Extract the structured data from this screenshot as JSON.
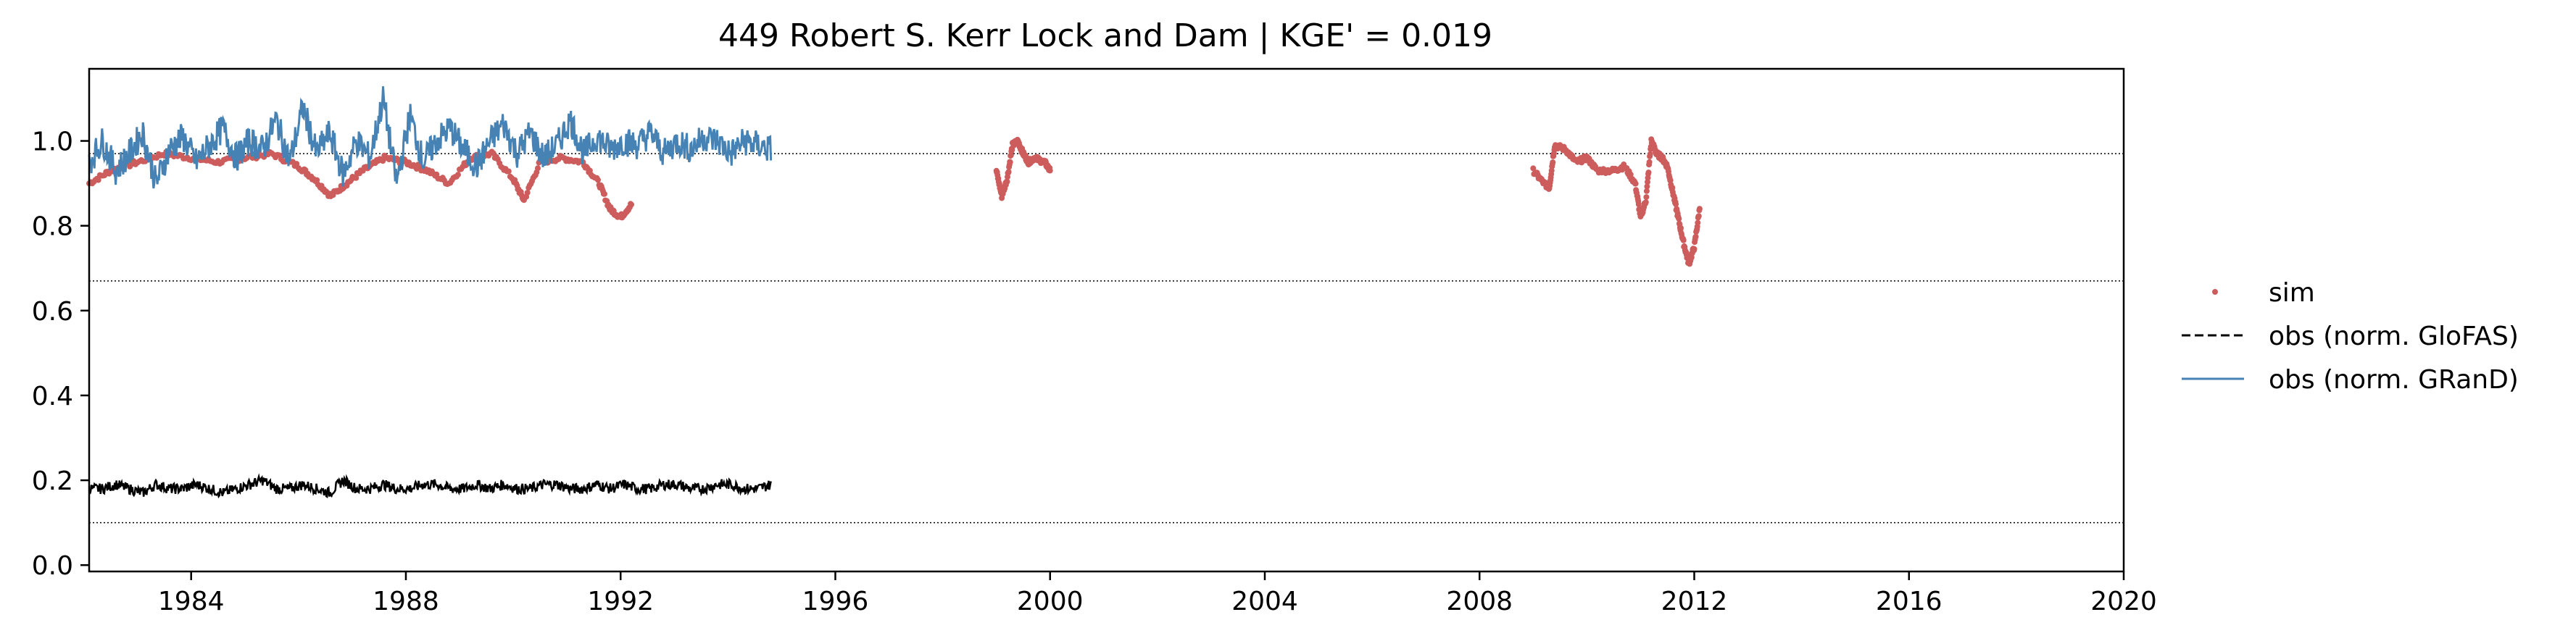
{
  "chart_data": {
    "type": "line",
    "title": "449  Robert S. Kerr Lock and Dam | KGE' = 0.019",
    "xlabel": "",
    "ylabel": "",
    "xlim": [
      1982.1,
      2020.0
    ],
    "ylim": [
      -0.015,
      1.17
    ],
    "x_ticks": [
      1984,
      1988,
      1992,
      1996,
      2000,
      2004,
      2008,
      2012,
      2016,
      2020
    ],
    "x_tick_labels": [
      "1984",
      "1988",
      "1992",
      "1996",
      "2000",
      "2004",
      "2008",
      "2012",
      "2016",
      "2020"
    ],
    "y_ticks": [
      0.0,
      0.2,
      0.4,
      0.6,
      0.8,
      1.0
    ],
    "y_tick_labels": [
      "0.0",
      "0.2",
      "0.4",
      "0.6",
      "0.8",
      "1.0"
    ],
    "reference_lines": [
      0.97,
      0.67,
      0.1
    ],
    "legend_position": "right",
    "colors": {
      "sim": "#cd5c5c",
      "obs_glofas": "#000000",
      "obs_grand": "#4682b4"
    },
    "series": [
      {
        "name": "sim",
        "style": "scatter",
        "segments": [
          {
            "x": [
              1982.1,
              1982.5,
              1983.0,
              1983.5,
              1984.0,
              1984.5,
              1985.0,
              1985.5,
              1986.0,
              1986.3,
              1986.6,
              1986.9,
              1987.2,
              1987.6,
              1988.0,
              1988.4,
              1988.8,
              1989.2,
              1989.6,
              1990.0,
              1990.2,
              1990.5,
              1990.9,
              1991.3,
              1991.6,
              1991.8,
              1992.0,
              1992.2
            ],
            "y": [
              0.9,
              0.93,
              0.95,
              0.97,
              0.96,
              0.95,
              0.96,
              0.97,
              0.94,
              0.91,
              0.87,
              0.9,
              0.93,
              0.96,
              0.95,
              0.93,
              0.9,
              0.96,
              0.97,
              0.91,
              0.86,
              0.95,
              0.96,
              0.95,
              0.9,
              0.84,
              0.82,
              0.85
            ]
          },
          {
            "x": [
              1999.0,
              1999.1,
              1999.2,
              1999.3,
              1999.4,
              1999.5,
              1999.6,
              1999.7,
              1999.9,
              2000.0
            ],
            "y": [
              0.93,
              0.87,
              0.91,
              0.99,
              1.0,
              0.97,
              0.95,
              0.96,
              0.95,
              0.93
            ]
          },
          {
            "x": [
              2009.0,
              2009.2,
              2009.3,
              2009.4,
              2009.6,
              2009.8,
              2010.0,
              2010.2,
              2010.5,
              2010.7,
              2010.9,
              2011.0,
              2011.1,
              2011.2,
              2011.3,
              2011.4,
              2011.5,
              2011.6,
              2011.7,
              2011.8,
              2011.9,
              2012.0,
              2012.1
            ],
            "y": [
              0.93,
              0.9,
              0.89,
              0.99,
              0.98,
              0.95,
              0.96,
              0.93,
              0.93,
              0.94,
              0.9,
              0.82,
              0.86,
              1.0,
              0.97,
              0.96,
              0.94,
              0.88,
              0.82,
              0.76,
              0.71,
              0.75,
              0.84
            ]
          }
        ]
      },
      {
        "name": "obs (norm. GloFAS)",
        "style": "dashed",
        "x_start": 1982.1,
        "x_end": 1994.8,
        "y": [
          0.18,
          0.18,
          0.19,
          0.18,
          0.17,
          0.19,
          0.18,
          0.18,
          0.19,
          0.18,
          0.17,
          0.18,
          0.19,
          0.2,
          0.18,
          0.18,
          0.19,
          0.18,
          0.17,
          0.2,
          0.18,
          0.18,
          0.19,
          0.18,
          0.18,
          0.19,
          0.19,
          0.18,
          0.18,
          0.19,
          0.18,
          0.19,
          0.18,
          0.18,
          0.19,
          0.19,
          0.18,
          0.18,
          0.19,
          0.18,
          0.19,
          0.18,
          0.18,
          0.19,
          0.19,
          0.18,
          0.18,
          0.19,
          0.19,
          0.18,
          0.18,
          0.19
        ]
      },
      {
        "name": "obs (norm. GRanD)",
        "style": "solid",
        "x_start": 1982.1,
        "x_end": 1994.8,
        "y": [
          0.95,
          1.0,
          0.93,
          0.97,
          1.02,
          0.9,
          0.98,
          1.01,
          0.95,
          0.99,
          1.03,
          0.96,
          1.0,
          0.98,
          1.05,
          0.95,
          1.08,
          0.97,
          1.02,
          0.92,
          1.0,
          0.96,
          1.1,
          0.9,
          1.06,
          0.95,
          1.0,
          1.03,
          0.98,
          0.94,
          1.0,
          1.04,
          0.97,
          1.02,
          0.96,
          0.99,
          1.05,
          0.97,
          1.01,
          0.98,
          1.0,
          0.99,
          1.02,
          0.97,
          1.0,
          0.98,
          1.01,
          1.0,
          0.97,
          1.0,
          0.99,
          0.98
        ]
      }
    ],
    "legend": [
      {
        "label": "sim",
        "marker": "dot",
        "color": "#cd5c5c"
      },
      {
        "label": "obs (norm. GloFAS)",
        "marker": "dashed",
        "color": "#000000"
      },
      {
        "label": "obs (norm. GRanD)",
        "marker": "solid",
        "color": "#4682b4"
      }
    ]
  }
}
